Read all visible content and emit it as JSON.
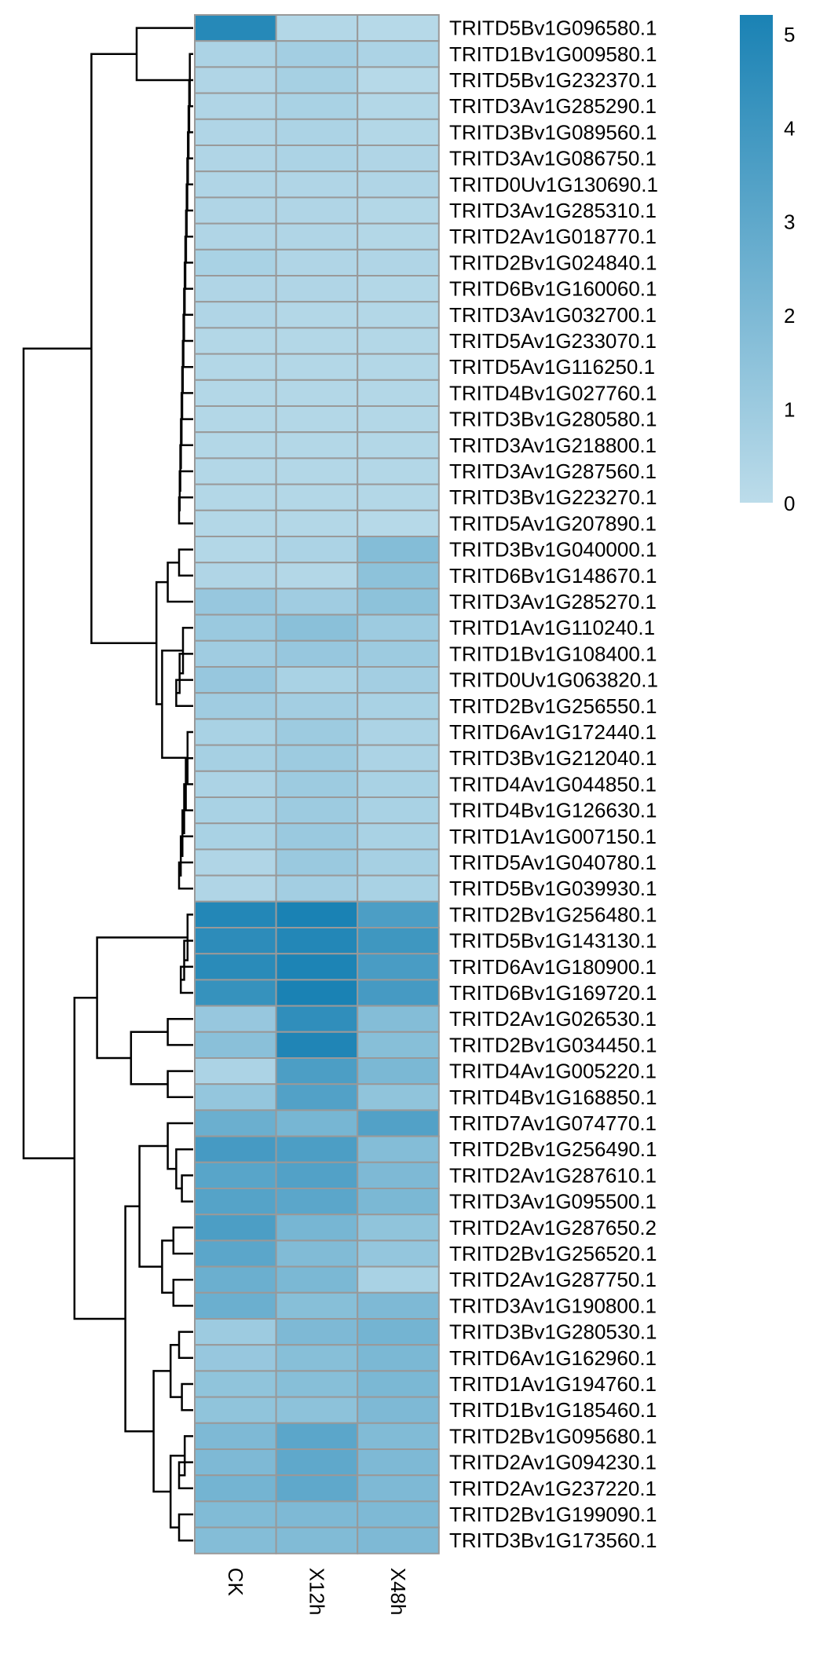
{
  "chart_data": {
    "type": "heatmap",
    "columns": [
      "CK",
      "X12h",
      "X48h"
    ],
    "rows": [
      "TRITD5Bv1G096580.1",
      "TRITD1Bv1G009580.1",
      "TRITD5Bv1G232370.1",
      "TRITD3Av1G285290.1",
      "TRITD3Bv1G089560.1",
      "TRITD3Av1G086750.1",
      "TRITD0Uv1G130690.1",
      "TRITD3Av1G285310.1",
      "TRITD2Av1G018770.1",
      "TRITD2Bv1G024840.1",
      "TRITD6Bv1G160060.1",
      "TRITD3Av1G032700.1",
      "TRITD5Av1G233070.1",
      "TRITD5Av1G116250.1",
      "TRITD4Bv1G027760.1",
      "TRITD3Bv1G280580.1",
      "TRITD3Av1G218800.1",
      "TRITD3Av1G287560.1",
      "TRITD3Bv1G223270.1",
      "TRITD5Av1G207890.1",
      "TRITD3Bv1G040000.1",
      "TRITD6Bv1G148670.1",
      "TRITD3Av1G285270.1",
      "TRITD1Av1G110240.1",
      "TRITD1Bv1G108400.1",
      "TRITD0Uv1G063820.1",
      "TRITD2Bv1G256550.1",
      "TRITD6Av1G172440.1",
      "TRITD3Bv1G212040.1",
      "TRITD4Av1G044850.1",
      "TRITD4Bv1G126630.1",
      "TRITD1Av1G007150.1",
      "TRITD5Av1G040780.1",
      "TRITD5Bv1G039930.1",
      "TRITD2Bv1G256480.1",
      "TRITD5Bv1G143130.1",
      "TRITD6Av1G180900.1",
      "TRITD6Bv1G169720.1",
      "TRITD2Av1G026530.1",
      "TRITD2Bv1G034450.1",
      "TRITD4Av1G005220.1",
      "TRITD4Bv1G168850.1",
      "TRITD7Av1G074770.1",
      "TRITD2Bv1G256490.1",
      "TRITD2Av1G287610.1",
      "TRITD3Av1G095500.1",
      "TRITD2Av1G287650.2",
      "TRITD2Bv1G256520.1",
      "TRITD2Av1G287750.1",
      "TRITD3Av1G190800.1",
      "TRITD3Bv1G280530.1",
      "TRITD6Av1G162960.1",
      "TRITD1Av1G194760.1",
      "TRITD1Bv1G185460.1",
      "TRITD2Bv1G095680.1",
      "TRITD2Av1G094230.1",
      "TRITD2Av1G237220.1",
      "TRITD2Bv1G199090.1",
      "TRITD3Bv1G173560.1"
    ],
    "values": [
      [
        4.8,
        0.3,
        0.2
      ],
      [
        0.5,
        0.8,
        0.5
      ],
      [
        0.4,
        0.7,
        0.2
      ],
      [
        0.4,
        0.6,
        0.3
      ],
      [
        0.4,
        0.5,
        0.3
      ],
      [
        0.4,
        0.5,
        0.4
      ],
      [
        0.4,
        0.4,
        0.4
      ],
      [
        0.4,
        0.4,
        0.3
      ],
      [
        0.4,
        0.4,
        0.3
      ],
      [
        0.6,
        0.4,
        0.4
      ],
      [
        0.4,
        0.4,
        0.3
      ],
      [
        0.4,
        0.3,
        0.3
      ],
      [
        0.3,
        0.3,
        0.3
      ],
      [
        0.3,
        0.3,
        0.3
      ],
      [
        0.3,
        0.3,
        0.3
      ],
      [
        0.3,
        0.3,
        0.3
      ],
      [
        0.3,
        0.3,
        0.3
      ],
      [
        0.3,
        0.3,
        0.3
      ],
      [
        0.3,
        0.3,
        0.3
      ],
      [
        0.3,
        0.3,
        0.2
      ],
      [
        0.3,
        0.5,
        1.8
      ],
      [
        0.4,
        0.3,
        1.5
      ],
      [
        1.2,
        0.9,
        1.5
      ],
      [
        1.1,
        1.6,
        1.0
      ],
      [
        0.9,
        1.2,
        1.0
      ],
      [
        1.2,
        0.6,
        0.8
      ],
      [
        0.9,
        0.8,
        0.6
      ],
      [
        0.6,
        1.0,
        0.5
      ],
      [
        0.7,
        1.0,
        0.5
      ],
      [
        0.5,
        1.0,
        0.6
      ],
      [
        0.6,
        1.0,
        0.6
      ],
      [
        0.6,
        1.1,
        0.6
      ],
      [
        0.4,
        1.1,
        0.7
      ],
      [
        0.4,
        0.8,
        0.6
      ],
      [
        4.9,
        5.2,
        3.6
      ],
      [
        4.6,
        4.9,
        4.0
      ],
      [
        4.7,
        5.1,
        3.7
      ],
      [
        4.3,
        5.2,
        3.8
      ],
      [
        1.2,
        4.5,
        1.8
      ],
      [
        1.6,
        5.0,
        1.7
      ],
      [
        0.5,
        3.6,
        2.1
      ],
      [
        1.3,
        3.4,
        1.4
      ],
      [
        2.6,
        2.2,
        3.4
      ],
      [
        3.8,
        3.6,
        1.8
      ],
      [
        3.2,
        3.4,
        2.0
      ],
      [
        3.3,
        3.1,
        2.1
      ],
      [
        3.6,
        2.2,
        1.4
      ],
      [
        3.1,
        1.9,
        1.3
      ],
      [
        2.6,
        2.1,
        0.6
      ],
      [
        2.6,
        1.7,
        2.0
      ],
      [
        1.0,
        2.0,
        2.3
      ],
      [
        1.2,
        1.7,
        2.1
      ],
      [
        1.4,
        1.7,
        2.1
      ],
      [
        1.4,
        1.5,
        2.0
      ],
      [
        2.0,
        3.1,
        1.9
      ],
      [
        2.0,
        3.0,
        2.0
      ],
      [
        2.3,
        3.0,
        2.0
      ],
      [
        1.9,
        2.0,
        2.0
      ],
      [
        1.8,
        1.9,
        2.0
      ]
    ],
    "color_scale": {
      "min": 0,
      "max": 5.2,
      "low": "#bcdcea",
      "high": "#1a82b4"
    },
    "legend": {
      "position": "top-right",
      "ticks": [
        "0",
        "1",
        "2",
        "3",
        "4",
        "5"
      ]
    },
    "cell_border_color": "#999999"
  }
}
